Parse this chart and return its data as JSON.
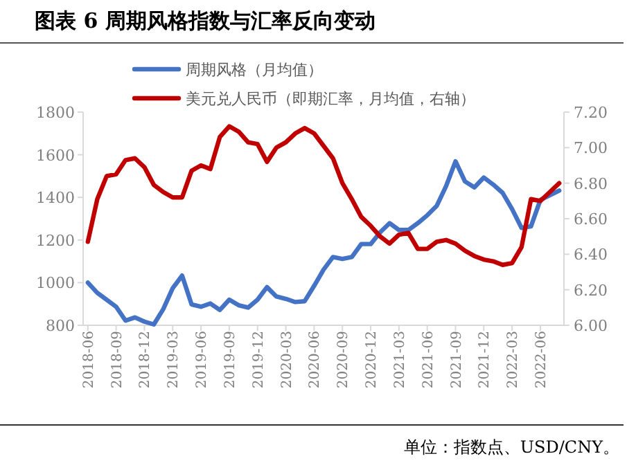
{
  "chart_data": {
    "type": "line",
    "title": "图表 6 周期风格指数与汇率反向变动",
    "categories": [
      "2018-06",
      null,
      null,
      "2018-09",
      null,
      null,
      "2018-12",
      null,
      null,
      "2019-03",
      null,
      null,
      "2019-06",
      null,
      null,
      "2019-09",
      null,
      null,
      "2019-12",
      null,
      null,
      "2020-03",
      null,
      null,
      "2020-06",
      null,
      null,
      "2020-09",
      null,
      null,
      "2020-12",
      null,
      null,
      "2021-03",
      null,
      null,
      "2021-06",
      null,
      null,
      "2021-09",
      null,
      null,
      "2021-12",
      null,
      null,
      "2022-03",
      null,
      null,
      "2022-06",
      null,
      null
    ],
    "series": [
      {
        "name": "周期风格（月均值）",
        "color": "#4472c4",
        "values": [
          1000,
          952,
          920,
          887,
          822,
          837,
          817,
          804,
          876,
          974,
          1033,
          898,
          887,
          902,
          872,
          920,
          894,
          883,
          920,
          979,
          935,
          924,
          909,
          913,
          985,
          1061,
          1120,
          1111,
          1120,
          1181,
          1181,
          1236,
          1279,
          1247,
          1247,
          1279,
          1316,
          1360,
          1453,
          1569,
          1475,
          1447,
          1493,
          1460,
          1421,
          1345,
          1257,
          1264,
          1388,
          1410,
          1432
        ]
      },
      {
        "name": "美元兑人民币（即期汇率，月均值，右轴）",
        "color": "#c00000",
        "axis": "y2",
        "values": [
          6.47,
          6.71,
          6.84,
          6.85,
          6.93,
          6.94,
          6.89,
          6.79,
          6.75,
          6.72,
          6.72,
          6.87,
          6.9,
          6.88,
          7.06,
          7.12,
          7.09,
          7.03,
          7.02,
          6.92,
          7.0,
          7.03,
          7.08,
          7.11,
          7.08,
          7.01,
          6.94,
          6.8,
          6.71,
          6.61,
          6.56,
          6.5,
          6.46,
          6.51,
          6.52,
          6.43,
          6.43,
          6.47,
          6.48,
          6.46,
          6.42,
          6.39,
          6.37,
          6.36,
          6.34,
          6.35,
          6.44,
          6.71,
          6.7,
          6.75,
          6.8
        ]
      }
    ],
    "ylim": [
      800,
      1800
    ],
    "yticks": [
      800,
      1000,
      1200,
      1400,
      1600,
      1800
    ],
    "y2lim": [
      6.0,
      7.2
    ],
    "y2ticks": [
      {
        "value": 6.0,
        "label": "6.00"
      },
      {
        "value": 6.2,
        "label": "6.20"
      },
      {
        "value": 6.4,
        "label": "6.40"
      },
      {
        "value": 6.6,
        "label": "6.60"
      },
      {
        "value": 6.8,
        "label": "6.80"
      },
      {
        "value": 7.0,
        "label": "7.00"
      },
      {
        "value": 7.2,
        "label": "7.20"
      }
    ],
    "legend": "top",
    "annotations": [
      "单位：指数点、USD/CNY。"
    ]
  }
}
